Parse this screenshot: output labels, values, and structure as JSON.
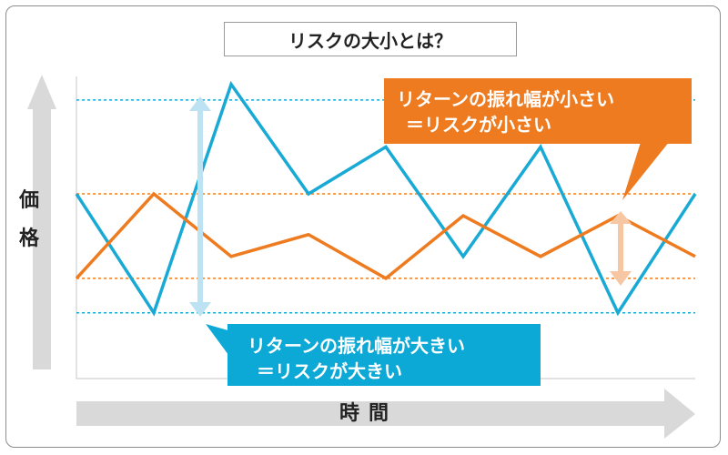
{
  "chart_data": {
    "type": "line",
    "title": "リスクの大小とは？",
    "xlabel": "時間",
    "ylabel": "価格",
    "x": [
      0,
      1,
      2,
      3,
      4,
      5,
      6,
      7,
      8
    ],
    "ylim": [
      0,
      10
    ],
    "series": [
      {
        "name": "振れ幅が大きい",
        "color": "#18a9d4",
        "values": [
          5.9,
          2.1,
          9.4,
          5.9,
          7.4,
          3.9,
          7.4,
          2.1,
          5.9
        ]
      },
      {
        "name": "振れ幅が小さい",
        "color": "#ee7b1f",
        "values": [
          3.2,
          5.9,
          3.9,
          4.6,
          3.2,
          5.2,
          3.9,
          5.2,
          3.9
        ]
      }
    ],
    "reference_lines": [
      {
        "value": 8.9,
        "color": "#18a9d4"
      },
      {
        "value": 5.9,
        "color": "#ee7b1f"
      },
      {
        "value": 3.2,
        "color": "#ee7b1f"
      },
      {
        "value": 2.1,
        "color": "#18a9d4"
      }
    ],
    "annotations": {
      "orange": {
        "line1": "リターンの振れ幅が小さい",
        "line2": "＝リスクが小さい",
        "color": "#ee7b1f"
      },
      "blue": {
        "line1": "リターンの振れ幅が大きい",
        "line2": "＝リスクが大きい",
        "color": "#0da9d6"
      }
    }
  }
}
